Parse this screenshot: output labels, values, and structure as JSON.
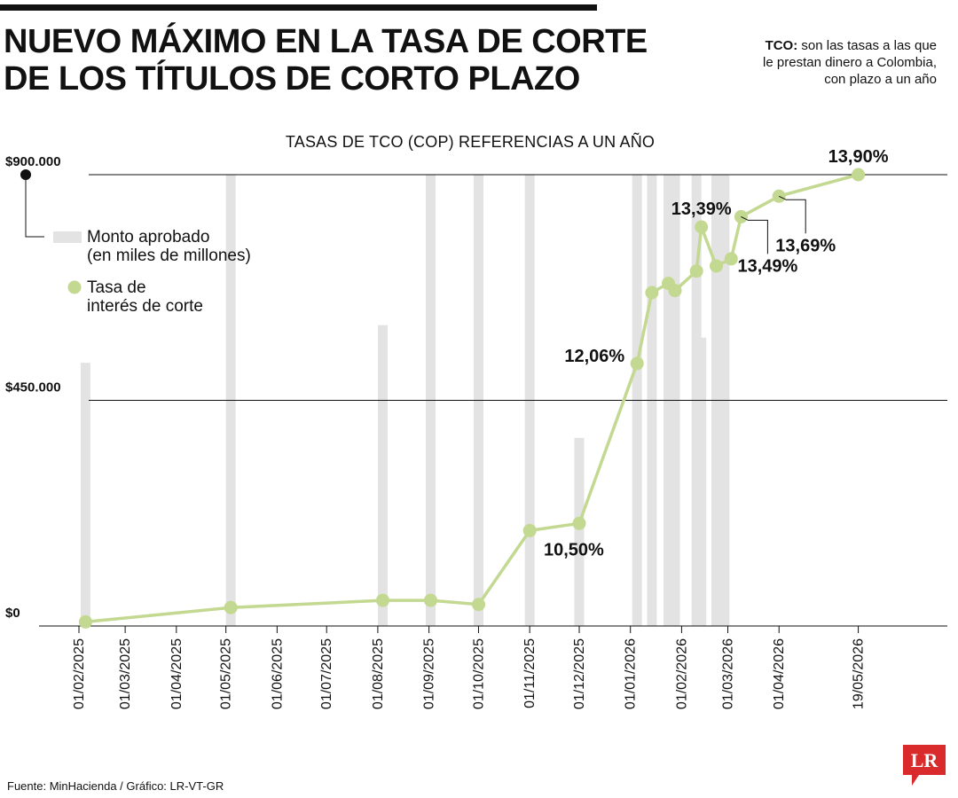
{
  "header": {
    "title_line1": "NUEVO MÁXIMO EN LA TASA DE CORTE",
    "title_line2": "DE LOS TÍTULOS DE CORTO PLAZO",
    "note_bold": "TCO:",
    "note_line1": "son las tasas a las que",
    "note_line2": "le prestan dinero a Colombia,",
    "note_line3": "con plazo a un año"
  },
  "footer": {
    "source": "Fuente: MinHacienda / Gráfico: LR-VT-GR",
    "logo_text": "LR"
  },
  "colors": {
    "bar": "#e3e3e3",
    "line": "#c3d890",
    "point": "#c3d890",
    "logo": "#d92b2b"
  },
  "chart_data": {
    "type": "bar+line",
    "title": "TASAS DE TCO (COP) REFERENCIAS A UN AÑO",
    "y_ticks": [
      {
        "value": 0,
        "label": "$0"
      },
      {
        "value": 450000,
        "label": "$450.000"
      },
      {
        "value": 900000,
        "label": "$900.000"
      }
    ],
    "ylim": [
      0,
      900000
    ],
    "x_ticks": [
      "01/02/2025",
      "01/03/2025",
      "01/04/2025",
      "01/05/2025",
      "01/06/2025",
      "01/07/2025",
      "01/08/2025",
      "01/09/2025",
      "01/10/2025",
      "01/11/2025",
      "01/12/2025",
      "01/01/2026",
      "01/02/2026",
      "01/03/2026",
      "01/04/2026",
      "19/05/2026"
    ],
    "legend": {
      "position": "top-left",
      "bars_label_line1": "Monto aprobado",
      "bars_label_line2": "(en miles de millones)",
      "line_label_line1": "Tasa de",
      "line_label_line2": "interés de corte"
    },
    "bars": [
      {
        "date": "2025-02-05",
        "value": 525000
      },
      {
        "date": "2025-05-04",
        "value": 900000
      },
      {
        "date": "2025-08-04",
        "value": 600000
      },
      {
        "date": "2025-09-02",
        "value": 900000
      },
      {
        "date": "2025-10-01",
        "value": 900000
      },
      {
        "date": "2025-11-01",
        "value": 900000
      },
      {
        "date": "2025-12-01",
        "value": 375000
      },
      {
        "date": "2026-01-05",
        "value": 900000
      },
      {
        "date": "2026-01-14",
        "value": 900000
      },
      {
        "date": "2026-01-24",
        "value": 900000
      },
      {
        "date": "2026-01-28",
        "value": 900000
      },
      {
        "date": "2026-02-10",
        "value": 900000
      },
      {
        "date": "2026-02-13",
        "value": 575000
      },
      {
        "date": "2026-02-22",
        "value": 900000
      },
      {
        "date": "2026-02-27",
        "value": 900000
      }
    ],
    "rate_axis": [
      9.5,
      13.9
    ],
    "rate_series": [
      {
        "date": "2025-02-05",
        "rate": 9.54
      },
      {
        "date": "2025-05-04",
        "rate": 9.68
      },
      {
        "date": "2025-08-04",
        "rate": 9.75
      },
      {
        "date": "2025-09-02",
        "rate": 9.75
      },
      {
        "date": "2025-10-01",
        "rate": 9.71
      },
      {
        "date": "2025-11-01",
        "rate": 10.43
      },
      {
        "date": "2025-12-01",
        "rate": 10.5,
        "label": "10,50%",
        "label_pos": "below-right"
      },
      {
        "date": "2026-01-05",
        "rate": 12.06,
        "label": "12,06%",
        "label_pos": "left"
      },
      {
        "date": "2026-01-14",
        "rate": 12.75
      },
      {
        "date": "2026-01-24",
        "rate": 12.84
      },
      {
        "date": "2026-01-28",
        "rate": 12.77
      },
      {
        "date": "2026-02-10",
        "rate": 12.96
      },
      {
        "date": "2026-02-13",
        "rate": 13.39,
        "label": "13,39%",
        "label_pos": "above"
      },
      {
        "date": "2026-02-22",
        "rate": 13.01
      },
      {
        "date": "2026-03-03",
        "rate": 13.08
      },
      {
        "date": "2026-03-09",
        "rate": 13.49,
        "label": "13,49%",
        "label_pos": "callout-below"
      },
      {
        "date": "2026-04-01",
        "rate": 13.69,
        "label": "13,69%",
        "label_pos": "callout-below"
      },
      {
        "date": "2026-05-19",
        "rate": 13.9,
        "label": "13,90%",
        "label_pos": "above"
      }
    ]
  }
}
